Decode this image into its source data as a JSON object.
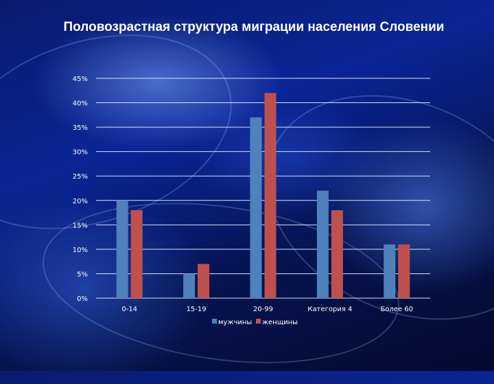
{
  "chart_data": {
    "type": "bar",
    "title": "Половозрастная структура миграции населения Словении",
    "categories": [
      "0-14",
      "15-19",
      "20-99",
      "Категория 4",
      "Более 60"
    ],
    "series": [
      {
        "name": "мужчины",
        "color": "#4f81bd",
        "values": [
          20,
          5,
          37,
          22,
          11
        ]
      },
      {
        "name": "женщины",
        "color": "#c0504d",
        "values": [
          18,
          7,
          42,
          18,
          11
        ]
      }
    ],
    "ylim": [
      0,
      45
    ],
    "yticks": [
      "0%",
      "5%",
      "10%",
      "15%",
      "20%",
      "25%",
      "30%",
      "35%",
      "40%",
      "45%"
    ],
    "grid": true,
    "legend_position": "bottom"
  }
}
